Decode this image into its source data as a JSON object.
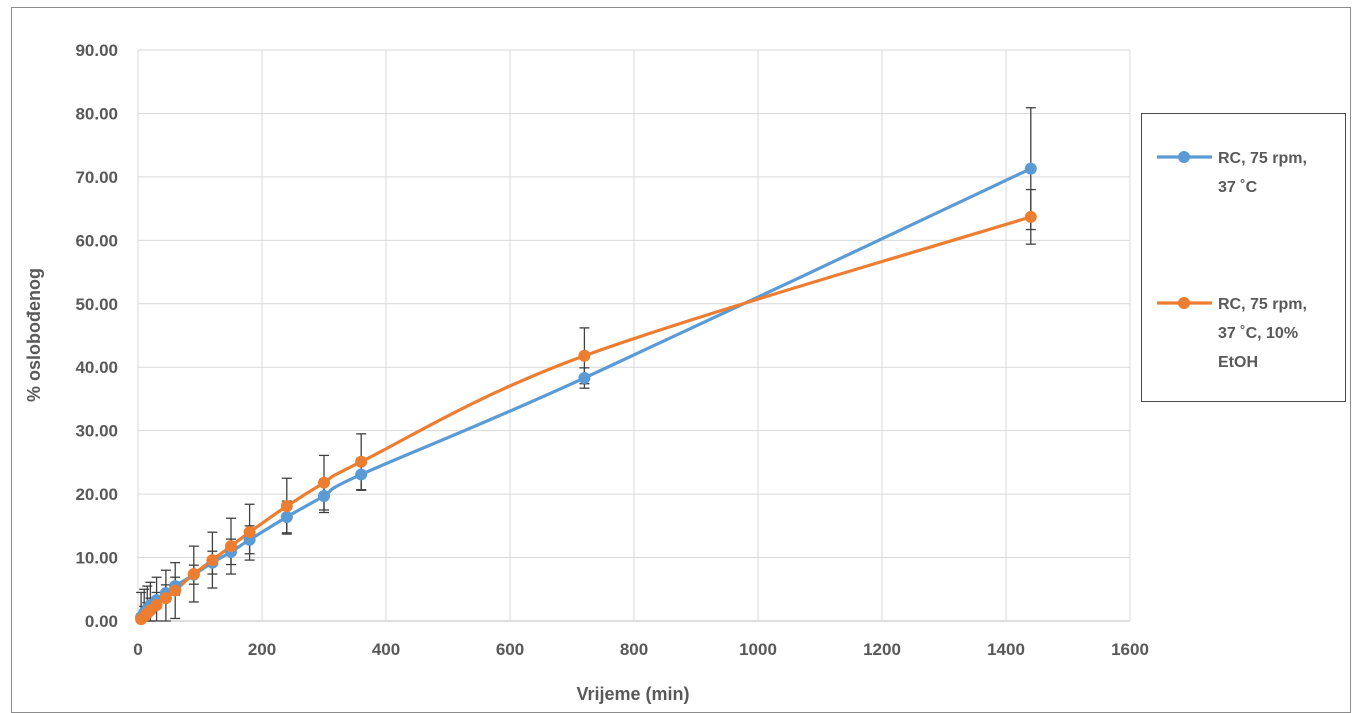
{
  "chart_data": {
    "type": "line",
    "xlabel": "Vrijeme (min)",
    "ylabel": "% oslobođenog",
    "xlim": [
      0,
      1600
    ],
    "ylim": [
      0,
      90
    ],
    "x_ticks": [
      "0",
      "200",
      "400",
      "600",
      "800",
      "1000",
      "1200",
      "1400",
      "1600"
    ],
    "y_ticks": [
      "0.00",
      "10.00",
      "20.00",
      "30.00",
      "40.00",
      "50.00",
      "60.00",
      "70.00",
      "80.00",
      "90.00"
    ],
    "grid": true,
    "legend_position": "right",
    "series": [
      {
        "name": "RC, 75 rpm, 37 ˚C",
        "legend_lines": [
          "RC, 75 rpm,",
          "37 ˚C"
        ],
        "color": "#5b9bd5",
        "x": [
          5,
          10,
          15,
          20,
          30,
          45,
          60,
          90,
          120,
          150,
          180,
          240,
          300,
          360,
          720,
          1440
        ],
        "y": [
          0.6,
          1.3,
          1.9,
          2.5,
          3.3,
          4.4,
          5.5,
          7.3,
          9.2,
          10.9,
          12.8,
          16.4,
          19.7,
          23.1,
          38.3,
          71.3
        ],
        "err": [
          0.5,
          1.0,
          1.0,
          1.1,
          1.2,
          1.3,
          1.4,
          1.5,
          1.8,
          2.0,
          2.2,
          2.5,
          2.6,
          2.5,
          1.6,
          9.6
        ]
      },
      {
        "name": "RC, 75 rpm, 37 ˚C, 10% EtOH",
        "legend_lines": [
          "RC, 75 rpm,",
          "37 ˚C, 10%",
          "EtOH"
        ],
        "color": "#ed7d31",
        "x": [
          5,
          10,
          15,
          20,
          30,
          45,
          60,
          90,
          120,
          150,
          180,
          240,
          300,
          360,
          720,
          1440
        ],
        "y": [
          0.3,
          0.7,
          1.2,
          1.7,
          2.5,
          3.6,
          4.8,
          7.4,
          9.6,
          11.8,
          14.0,
          18.1,
          21.8,
          25.1,
          41.8,
          63.7
        ],
        "err": [
          4.2,
          4.3,
          4.3,
          4.4,
          4.4,
          4.4,
          4.4,
          4.4,
          4.4,
          4.4,
          4.4,
          4.4,
          4.3,
          4.4,
          4.4,
          4.3
        ]
      }
    ]
  }
}
